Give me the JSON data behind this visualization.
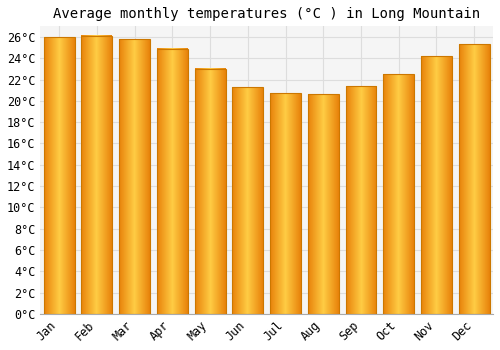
{
  "title": "Average monthly temperatures (°C ) in Long Mountain",
  "months": [
    "Jan",
    "Feb",
    "Mar",
    "Apr",
    "May",
    "Jun",
    "Jul",
    "Aug",
    "Sep",
    "Oct",
    "Nov",
    "Dec"
  ],
  "values": [
    26.0,
    26.1,
    25.8,
    24.9,
    23.0,
    21.3,
    20.7,
    20.6,
    21.4,
    22.5,
    24.2,
    25.3
  ],
  "bar_color_left": "#E8820A",
  "bar_color_mid": "#FFCC44",
  "bar_color_right": "#E8820A",
  "bar_edge_color": "#CC7700",
  "background_color": "#FFFFFF",
  "plot_bg_color": "#F5F5F5",
  "grid_color": "#DDDDDD",
  "ylim": [
    0,
    27
  ],
  "ytick_step": 2,
  "title_fontsize": 10,
  "tick_fontsize": 8.5,
  "font_family": "monospace"
}
